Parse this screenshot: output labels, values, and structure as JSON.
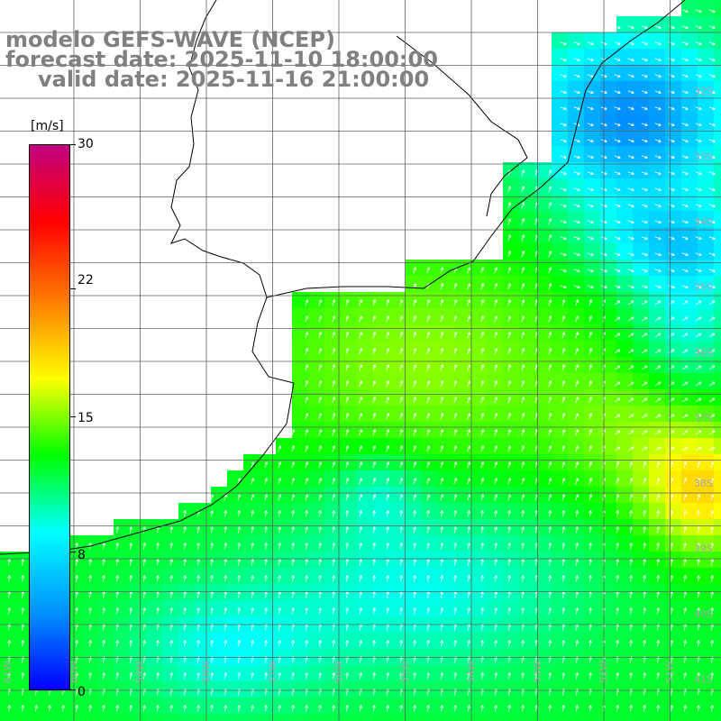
{
  "title": {
    "line1": "modelo GEFS-WAVE (NCEP)",
    "line2": "forecast date: 2025-11-10 18:00:00",
    "line3": "valid date: 2025-11-16 21:00:00"
  },
  "colorbar": {
    "unit": "[m/s]",
    "min": 0,
    "max": 30,
    "ticks": [
      {
        "label": "30",
        "value": 30
      },
      {
        "label": "22",
        "value": 22
      },
      {
        "label": "15",
        "value": 15
      },
      {
        "label": "8",
        "value": 8
      },
      {
        "label": "0",
        "value": 0
      }
    ],
    "colors": [
      "#0000ff",
      "#0090ff",
      "#00ffff",
      "#00ff00",
      "#ffff00",
      "#ff8000",
      "#ff0000",
      "#c00080"
    ]
  },
  "map": {
    "lat_labels": [
      "32S",
      "33S",
      "34S",
      "35S",
      "36S",
      "37S",
      "38S",
      "39S",
      "40S",
      "41S"
    ],
    "lon_labels": [
      "61W",
      "60W",
      "59W",
      "58W",
      "57W",
      "56W",
      "55W",
      "54W",
      "53W",
      "52W",
      "51W"
    ],
    "lat_range": [
      -41.2,
      -31.0
    ],
    "lon_range": [
      -62.0,
      -51.0
    ],
    "land_color": "#ffffff",
    "grid_color": "#606060",
    "arrow_color": "#ffffff"
  }
}
